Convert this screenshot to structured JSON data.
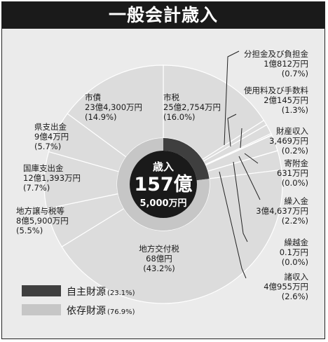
{
  "title": "一般会計歳入",
  "chart_data": {
    "type": "pie",
    "center_label": [
      "歳入",
      "157億",
      "5,000万円"
    ],
    "slices": [
      {
        "name": "市税",
        "value_text": "25億2,754万円",
        "pct_text": "(16.0%)",
        "value": 16.0,
        "group": "自主財源"
      },
      {
        "name": "分担金及び負担金",
        "value_text": "1億812万円",
        "pct_text": "(0.7%)",
        "value": 0.7,
        "group": "自主財源"
      },
      {
        "name": "使用料及び手数料",
        "value_text": "2億145万円",
        "pct_text": "(1.3%)",
        "value": 1.3,
        "group": "自主財源"
      },
      {
        "name": "財産収入",
        "value_text": "3,469万円",
        "pct_text": "(0.2%)",
        "value": 0.2,
        "group": "自主財源"
      },
      {
        "name": "寄附金",
        "value_text": "631万円",
        "pct_text": "(0.0%)",
        "value": 0.05,
        "group": "自主財源"
      },
      {
        "name": "繰入金",
        "value_text": "3億4,637万円",
        "pct_text": "(2.2%)",
        "value": 2.2,
        "group": "自主財源"
      },
      {
        "name": "繰越金",
        "value_text": "0.1万円",
        "pct_text": "(0.0%)",
        "value": 0.02,
        "group": "自主財源"
      },
      {
        "name": "諸収入",
        "value_text": "4億955万円",
        "pct_text": "(2.6%)",
        "value": 2.6,
        "group": "自主財源"
      },
      {
        "name": "地方交付税",
        "value_text": "68億円",
        "pct_text": "(43.2%)",
        "value": 43.2,
        "group": "依存財源"
      },
      {
        "name": "地方譲与税等",
        "value_text": "8億5,900万円",
        "pct_text": "(5.5%)",
        "value": 5.5,
        "group": "依存財源"
      },
      {
        "name": "国庫支出金",
        "value_text": "12億1,393万円",
        "pct_text": "(7.7%)",
        "value": 7.7,
        "group": "依存財源"
      },
      {
        "name": "県支出金",
        "value_text": "9億4万円",
        "pct_text": "(5.7%)",
        "value": 5.7,
        "group": "依存財源"
      },
      {
        "name": "市債",
        "value_text": "23億4,300万円",
        "pct_text": "(14.9%)",
        "value": 14.9,
        "group": "依存財源"
      }
    ],
    "legend": [
      {
        "label": "自主財源",
        "pct": "(23.1%)",
        "color": "#3f3f3f",
        "value": 23.1
      },
      {
        "label": "依存財源",
        "pct": "(76.9%)",
        "color": "#c6c6c6",
        "value": 76.9
      }
    ],
    "colors": {
      "own": "#3f3f3f",
      "dependent": "#dcdcdc",
      "dependent_dark": "#c6c6c6",
      "hole": "#1a1a1a",
      "background": "#ebebeb"
    }
  }
}
